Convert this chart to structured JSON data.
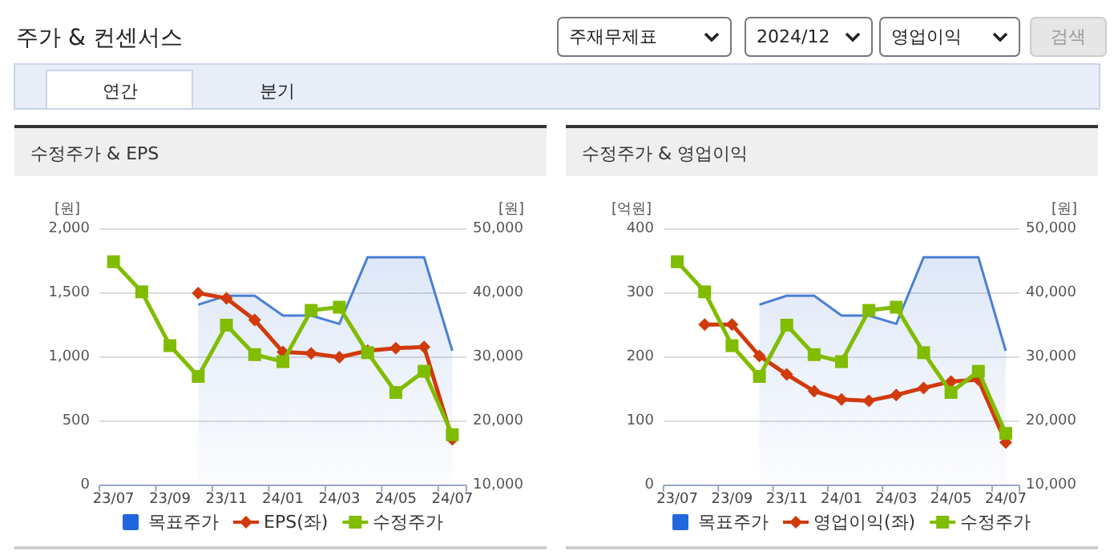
{
  "chart_data": [
    {
      "type": "other",
      "title": "주가 & 컨센서스",
      "annotations": [
        "주재무제표",
        "2024/12",
        "영업이익",
        "검색",
        "연간",
        "분기"
      ]
    },
    {
      "type": "line",
      "title": "수정주가 & EPS",
      "ylabel": "[원]",
      "y2label": "[원]",
      "grid": "y",
      "legend": "bottom",
      "categories": [
        "23/07",
        null,
        "23/09",
        null,
        "23/11",
        null,
        "24/01",
        null,
        "24/03",
        null,
        "24/05",
        null,
        "24/07"
      ],
      "ylim": [
        0,
        2000
      ],
      "yticks": [
        0,
        {
          "value": 500,
          "label": "500"
        },
        {
          "value": 1000,
          "label": "1,000"
        },
        {
          "value": 1500,
          "label": "1,500"
        },
        {
          "value": 2000,
          "label": "2,000"
        }
      ],
      "y2lim": [
        10000,
        50000
      ],
      "y2ticks": [
        {
          "value": 10000,
          "label": "10,000"
        },
        {
          "value": 20000,
          "label": "20,000"
        },
        {
          "value": 30000,
          "label": "30,000"
        },
        {
          "value": 40000,
          "label": "40,000"
        },
        {
          "value": 50000,
          "label": "50,000"
        }
      ],
      "series": [
        {
          "name": "목표주가",
          "type": "area",
          "axis": "y2",
          "color": "#4a7fd6",
          "marker": "none",
          "values": [
            null,
            null,
            null,
            38200,
            39600,
            39600,
            36500,
            36500,
            35200,
            45600,
            45600,
            45600,
            31000
          ]
        },
        {
          "name": "EPS(좌)",
          "type": "line",
          "color": "#d13a0a",
          "marker": "diamond",
          "values": [
            null,
            null,
            null,
            1500,
            1460,
            1290,
            1040,
            1030,
            1000,
            1050,
            1070,
            1080,
            360
          ]
        },
        {
          "name": "수정주가",
          "type": "line",
          "axis": "y2",
          "color": "#80bc00",
          "marker": "square",
          "values": [
            44900,
            40200,
            31800,
            27000,
            35000,
            30400,
            29300,
            37300,
            37800,
            30700,
            24500,
            27800,
            17900
          ]
        }
      ]
    },
    {
      "type": "line",
      "title": "수정주가 & 영업이익",
      "ylabel": "[억원]",
      "y2label": "[원]",
      "grid": "y",
      "legend": "bottom",
      "categories": [
        "23/07",
        null,
        "23/09",
        null,
        "23/11",
        null,
        "24/01",
        null,
        "24/03",
        null,
        "24/05",
        null,
        "24/07"
      ],
      "ylim": [
        0,
        400
      ],
      "yticks": [
        0,
        100,
        200,
        300,
        400
      ],
      "y2lim": [
        10000,
        50000
      ],
      "y2ticks": [
        {
          "value": 10000,
          "label": "10,000"
        },
        {
          "value": 20000,
          "label": "20,000"
        },
        {
          "value": 30000,
          "label": "30,000"
        },
        {
          "value": 40000,
          "label": "40,000"
        },
        {
          "value": 50000,
          "label": "50,000"
        }
      ],
      "series": [
        {
          "name": "목표주가",
          "type": "area",
          "axis": "y2",
          "color": "#4a7fd6",
          "marker": "none",
          "values": [
            null,
            null,
            null,
            38200,
            39600,
            39600,
            36500,
            36500,
            35200,
            45600,
            45600,
            45600,
            31000
          ]
        },
        {
          "name": "영업이익(좌)",
          "type": "line",
          "color": "#d13a0a",
          "marker": "diamond",
          "values": [
            null,
            251,
            251,
            202,
            173,
            147,
            134,
            132,
            141,
            152,
            162,
            165,
            67
          ]
        },
        {
          "name": "수정주가",
          "type": "line",
          "axis": "y2",
          "color": "#80bc00",
          "marker": "square",
          "values": [
            44900,
            40200,
            31800,
            27000,
            35000,
            30400,
            29300,
            37300,
            37800,
            30700,
            24500,
            27800,
            18100
          ]
        }
      ]
    }
  ]
}
